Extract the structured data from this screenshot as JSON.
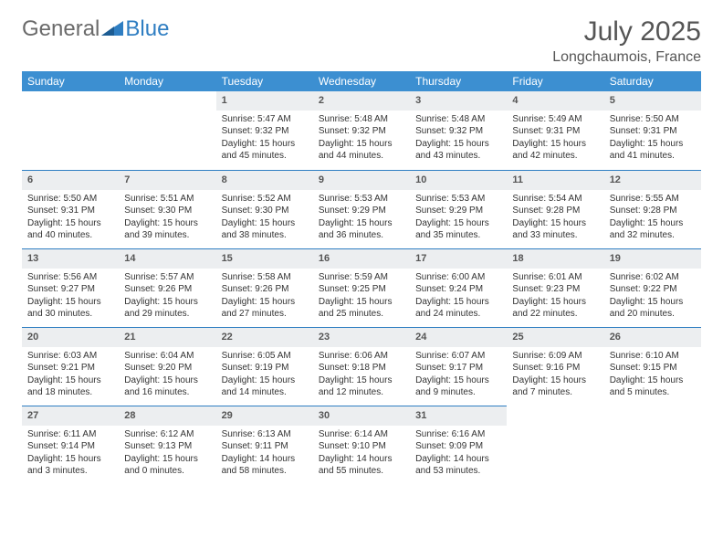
{
  "brand": {
    "part1": "General",
    "part2": "Blue"
  },
  "title": "July 2025",
  "location": "Longchaumois, France",
  "colors": {
    "header_bg": "#3c8fd1",
    "header_text": "#ffffff",
    "daynum_bg": "#eceef0",
    "row_border": "#2f7ec2",
    "body_text": "#333333",
    "title_text": "#555555"
  },
  "day_headers": [
    "Sunday",
    "Monday",
    "Tuesday",
    "Wednesday",
    "Thursday",
    "Friday",
    "Saturday"
  ],
  "weeks": [
    [
      null,
      null,
      {
        "n": "1",
        "sr": "Sunrise: 5:47 AM",
        "ss": "Sunset: 9:32 PM",
        "d1": "Daylight: 15 hours",
        "d2": "and 45 minutes."
      },
      {
        "n": "2",
        "sr": "Sunrise: 5:48 AM",
        "ss": "Sunset: 9:32 PM",
        "d1": "Daylight: 15 hours",
        "d2": "and 44 minutes."
      },
      {
        "n": "3",
        "sr": "Sunrise: 5:48 AM",
        "ss": "Sunset: 9:32 PM",
        "d1": "Daylight: 15 hours",
        "d2": "and 43 minutes."
      },
      {
        "n": "4",
        "sr": "Sunrise: 5:49 AM",
        "ss": "Sunset: 9:31 PM",
        "d1": "Daylight: 15 hours",
        "d2": "and 42 minutes."
      },
      {
        "n": "5",
        "sr": "Sunrise: 5:50 AM",
        "ss": "Sunset: 9:31 PM",
        "d1": "Daylight: 15 hours",
        "d2": "and 41 minutes."
      }
    ],
    [
      {
        "n": "6",
        "sr": "Sunrise: 5:50 AM",
        "ss": "Sunset: 9:31 PM",
        "d1": "Daylight: 15 hours",
        "d2": "and 40 minutes."
      },
      {
        "n": "7",
        "sr": "Sunrise: 5:51 AM",
        "ss": "Sunset: 9:30 PM",
        "d1": "Daylight: 15 hours",
        "d2": "and 39 minutes."
      },
      {
        "n": "8",
        "sr": "Sunrise: 5:52 AM",
        "ss": "Sunset: 9:30 PM",
        "d1": "Daylight: 15 hours",
        "d2": "and 38 minutes."
      },
      {
        "n": "9",
        "sr": "Sunrise: 5:53 AM",
        "ss": "Sunset: 9:29 PM",
        "d1": "Daylight: 15 hours",
        "d2": "and 36 minutes."
      },
      {
        "n": "10",
        "sr": "Sunrise: 5:53 AM",
        "ss": "Sunset: 9:29 PM",
        "d1": "Daylight: 15 hours",
        "d2": "and 35 minutes."
      },
      {
        "n": "11",
        "sr": "Sunrise: 5:54 AM",
        "ss": "Sunset: 9:28 PM",
        "d1": "Daylight: 15 hours",
        "d2": "and 33 minutes."
      },
      {
        "n": "12",
        "sr": "Sunrise: 5:55 AM",
        "ss": "Sunset: 9:28 PM",
        "d1": "Daylight: 15 hours",
        "d2": "and 32 minutes."
      }
    ],
    [
      {
        "n": "13",
        "sr": "Sunrise: 5:56 AM",
        "ss": "Sunset: 9:27 PM",
        "d1": "Daylight: 15 hours",
        "d2": "and 30 minutes."
      },
      {
        "n": "14",
        "sr": "Sunrise: 5:57 AM",
        "ss": "Sunset: 9:26 PM",
        "d1": "Daylight: 15 hours",
        "d2": "and 29 minutes."
      },
      {
        "n": "15",
        "sr": "Sunrise: 5:58 AM",
        "ss": "Sunset: 9:26 PM",
        "d1": "Daylight: 15 hours",
        "d2": "and 27 minutes."
      },
      {
        "n": "16",
        "sr": "Sunrise: 5:59 AM",
        "ss": "Sunset: 9:25 PM",
        "d1": "Daylight: 15 hours",
        "d2": "and 25 minutes."
      },
      {
        "n": "17",
        "sr": "Sunrise: 6:00 AM",
        "ss": "Sunset: 9:24 PM",
        "d1": "Daylight: 15 hours",
        "d2": "and 24 minutes."
      },
      {
        "n": "18",
        "sr": "Sunrise: 6:01 AM",
        "ss": "Sunset: 9:23 PM",
        "d1": "Daylight: 15 hours",
        "d2": "and 22 minutes."
      },
      {
        "n": "19",
        "sr": "Sunrise: 6:02 AM",
        "ss": "Sunset: 9:22 PM",
        "d1": "Daylight: 15 hours",
        "d2": "and 20 minutes."
      }
    ],
    [
      {
        "n": "20",
        "sr": "Sunrise: 6:03 AM",
        "ss": "Sunset: 9:21 PM",
        "d1": "Daylight: 15 hours",
        "d2": "and 18 minutes."
      },
      {
        "n": "21",
        "sr": "Sunrise: 6:04 AM",
        "ss": "Sunset: 9:20 PM",
        "d1": "Daylight: 15 hours",
        "d2": "and 16 minutes."
      },
      {
        "n": "22",
        "sr": "Sunrise: 6:05 AM",
        "ss": "Sunset: 9:19 PM",
        "d1": "Daylight: 15 hours",
        "d2": "and 14 minutes."
      },
      {
        "n": "23",
        "sr": "Sunrise: 6:06 AM",
        "ss": "Sunset: 9:18 PM",
        "d1": "Daylight: 15 hours",
        "d2": "and 12 minutes."
      },
      {
        "n": "24",
        "sr": "Sunrise: 6:07 AM",
        "ss": "Sunset: 9:17 PM",
        "d1": "Daylight: 15 hours",
        "d2": "and 9 minutes."
      },
      {
        "n": "25",
        "sr": "Sunrise: 6:09 AM",
        "ss": "Sunset: 9:16 PM",
        "d1": "Daylight: 15 hours",
        "d2": "and 7 minutes."
      },
      {
        "n": "26",
        "sr": "Sunrise: 6:10 AM",
        "ss": "Sunset: 9:15 PM",
        "d1": "Daylight: 15 hours",
        "d2": "and 5 minutes."
      }
    ],
    [
      {
        "n": "27",
        "sr": "Sunrise: 6:11 AM",
        "ss": "Sunset: 9:14 PM",
        "d1": "Daylight: 15 hours",
        "d2": "and 3 minutes."
      },
      {
        "n": "28",
        "sr": "Sunrise: 6:12 AM",
        "ss": "Sunset: 9:13 PM",
        "d1": "Daylight: 15 hours",
        "d2": "and 0 minutes."
      },
      {
        "n": "29",
        "sr": "Sunrise: 6:13 AM",
        "ss": "Sunset: 9:11 PM",
        "d1": "Daylight: 14 hours",
        "d2": "and 58 minutes."
      },
      {
        "n": "30",
        "sr": "Sunrise: 6:14 AM",
        "ss": "Sunset: 9:10 PM",
        "d1": "Daylight: 14 hours",
        "d2": "and 55 minutes."
      },
      {
        "n": "31",
        "sr": "Sunrise: 6:16 AM",
        "ss": "Sunset: 9:09 PM",
        "d1": "Daylight: 14 hours",
        "d2": "and 53 minutes."
      },
      null,
      null
    ]
  ]
}
